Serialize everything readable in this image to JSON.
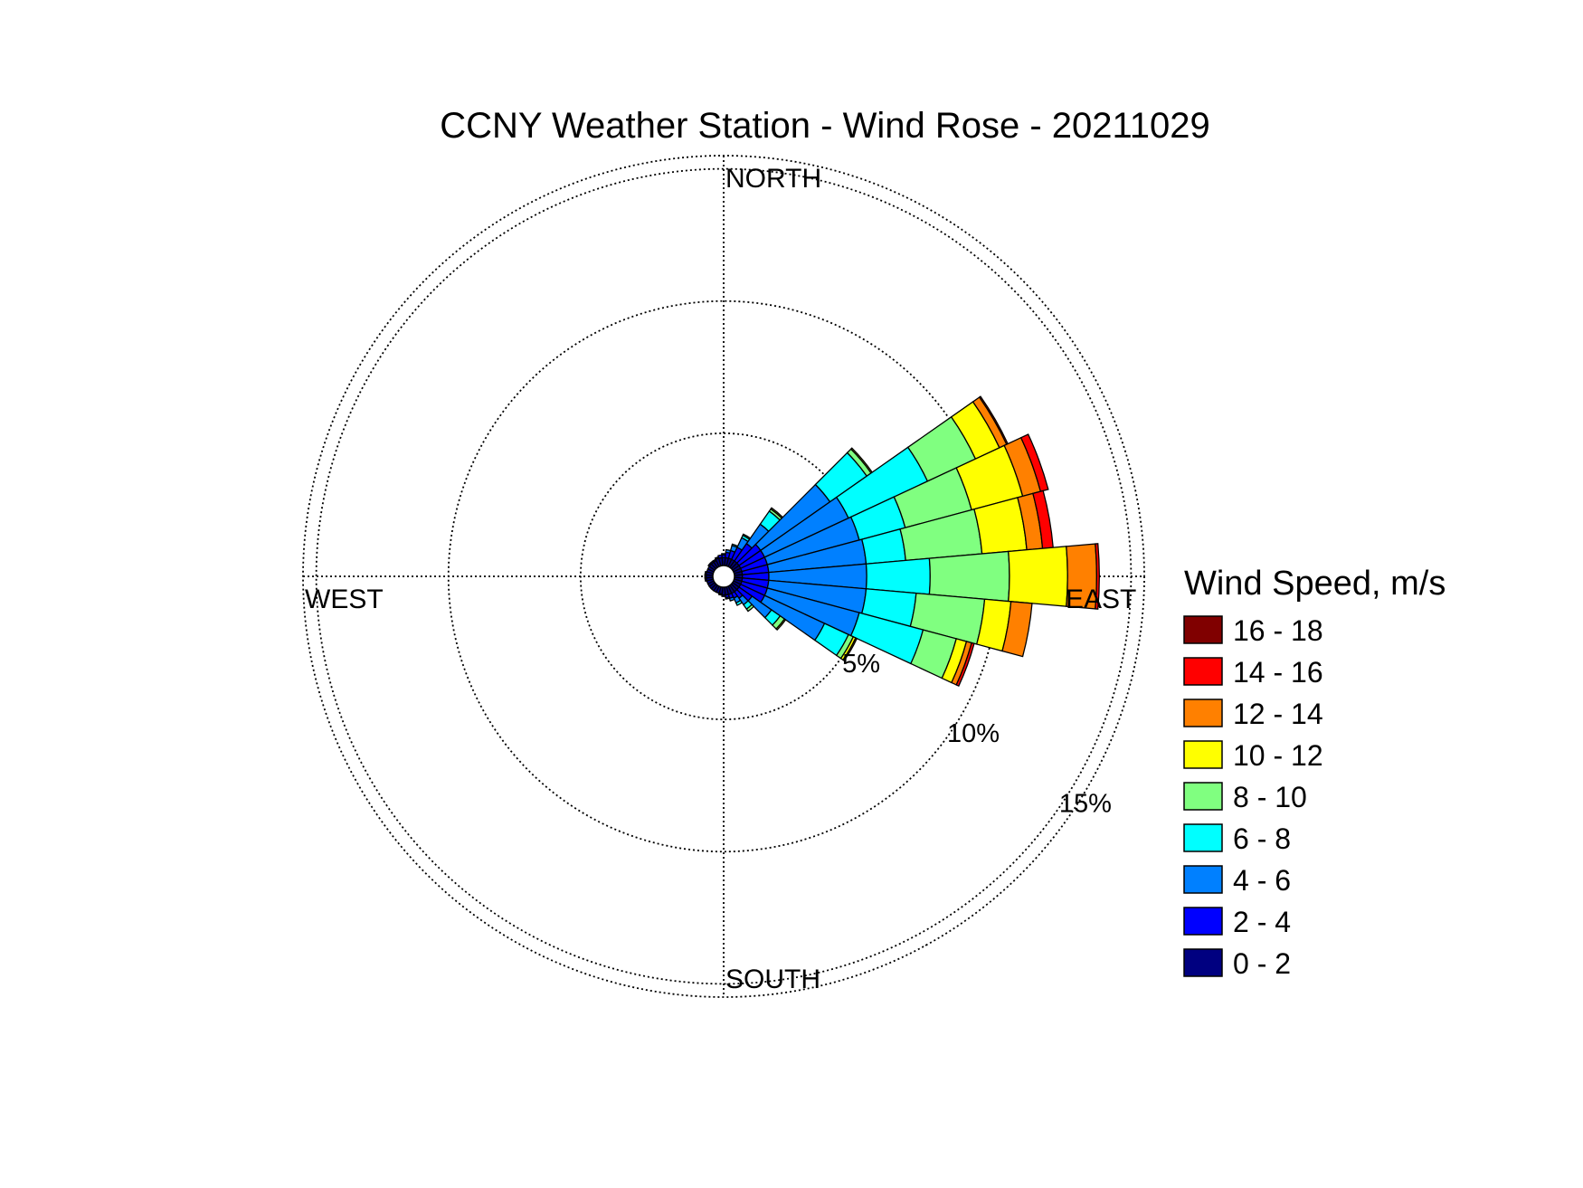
{
  "chart_data": {
    "type": "polar-bar",
    "title": "CCNY Weather Station - Wind Rose - 20211029",
    "directions": {
      "north": "NORTH",
      "west": "WEST",
      "east": "EAST",
      "south": "SOUTH"
    },
    "radial_ticks": [
      {
        "value": 5,
        "label": "5%"
      },
      {
        "value": 10,
        "label": "10%"
      },
      {
        "value": 15,
        "label": "15%"
      }
    ],
    "rmax": 15.5,
    "legend": {
      "title": "Wind Speed, m/s",
      "bins": [
        {
          "label": "16 - 18",
          "color": "#800000"
        },
        {
          "label": "14 - 16",
          "color": "#ff0000"
        },
        {
          "label": "12 - 14",
          "color": "#ff8000"
        },
        {
          "label": "10 - 12",
          "color": "#ffff00"
        },
        {
          "label": "8 - 10",
          "color": "#80ff80"
        },
        {
          "label": "6 - 8",
          "color": "#00ffff"
        },
        {
          "label": "4 - 6",
          "color": "#0080ff"
        },
        {
          "label": "2 - 4",
          "color": "#0000ff"
        },
        {
          "label": "0 - 2",
          "color": "#000080"
        }
      ]
    },
    "speed_bins_low_to_high": [
      "0 - 2",
      "2 - 4",
      "4 - 6",
      "6 - 8",
      "8 - 10",
      "10 - 12",
      "12 - 14",
      "14 - 16",
      "16 - 18"
    ],
    "sector_width_deg": 10,
    "sectors": [
      {
        "direction_deg": 0,
        "values": [
          0.3,
          0.1,
          0.05,
          0,
          0,
          0,
          0,
          0,
          0
        ]
      },
      {
        "direction_deg": 10,
        "values": [
          0.3,
          0.2,
          0.1,
          0,
          0,
          0,
          0,
          0,
          0
        ]
      },
      {
        "direction_deg": 20,
        "values": [
          0.3,
          0.3,
          0.2,
          0.05,
          0,
          0,
          0,
          0,
          0
        ]
      },
      {
        "direction_deg": 30,
        "values": [
          0.3,
          0.5,
          0.4,
          0.1,
          0.05,
          0,
          0,
          0,
          0
        ]
      },
      {
        "direction_deg": 40,
        "values": [
          0.3,
          0.8,
          0.9,
          0.6,
          0.1,
          0.05,
          0,
          0,
          0
        ]
      },
      {
        "direction_deg": 50,
        "values": [
          0.3,
          1.0,
          3.2,
          1.7,
          0.2,
          0.05,
          0,
          0,
          0
        ]
      },
      {
        "direction_deg": 60,
        "values": [
          0.3,
          1.0,
          3.5,
          3.3,
          2.0,
          1.0,
          0.3,
          0.05,
          0
        ]
      },
      {
        "direction_deg": 70,
        "values": [
          0.3,
          1.0,
          3.6,
          1.8,
          2.6,
          2.0,
          0.7,
          0.3,
          0
        ]
      },
      {
        "direction_deg": 80,
        "values": [
          0.3,
          1.0,
          3.7,
          1.5,
          2.9,
          1.7,
          0.6,
          0.4,
          0
        ]
      },
      {
        "direction_deg": 90,
        "values": [
          0.3,
          1.0,
          3.7,
          2.4,
          3.0,
          2.2,
          1.1,
          0.1,
          0
        ]
      },
      {
        "direction_deg": 100,
        "values": [
          0.3,
          1.0,
          3.7,
          1.9,
          2.6,
          1.0,
          0.8,
          0,
          0
        ]
      },
      {
        "direction_deg": 110,
        "values": [
          0.3,
          1.0,
          3.6,
          2.5,
          1.3,
          0.4,
          0.2,
          0.1,
          0
        ]
      },
      {
        "direction_deg": 120,
        "values": [
          0.3,
          1.0,
          2.5,
          1.0,
          0.2,
          0.1,
          0.05,
          0,
          0
        ]
      },
      {
        "direction_deg": 130,
        "values": [
          0.3,
          0.6,
          0.9,
          0.4,
          0.2,
          0.05,
          0,
          0,
          0
        ]
      },
      {
        "direction_deg": 140,
        "values": [
          0.3,
          0.3,
          0.3,
          0.2,
          0.1,
          0,
          0,
          0,
          0
        ]
      },
      {
        "direction_deg": 150,
        "values": [
          0.3,
          0.2,
          0.2,
          0.1,
          0,
          0,
          0,
          0,
          0
        ]
      },
      {
        "direction_deg": 160,
        "values": [
          0.3,
          0.15,
          0.1,
          0,
          0,
          0,
          0,
          0,
          0
        ]
      },
      {
        "direction_deg": 170,
        "values": [
          0.3,
          0.1,
          0.05,
          0,
          0,
          0,
          0,
          0,
          0
        ]
      },
      {
        "direction_deg": 180,
        "values": [
          0.3,
          0.05,
          0,
          0,
          0,
          0,
          0,
          0,
          0
        ]
      },
      {
        "direction_deg": 190,
        "values": [
          0.25,
          0.05,
          0,
          0,
          0,
          0,
          0,
          0,
          0
        ]
      },
      {
        "direction_deg": 200,
        "values": [
          0.25,
          0,
          0,
          0,
          0,
          0,
          0,
          0,
          0
        ]
      },
      {
        "direction_deg": 210,
        "values": [
          0.25,
          0,
          0,
          0,
          0,
          0,
          0,
          0,
          0
        ]
      },
      {
        "direction_deg": 220,
        "values": [
          0.25,
          0,
          0,
          0,
          0,
          0,
          0,
          0,
          0
        ]
      },
      {
        "direction_deg": 230,
        "values": [
          0.25,
          0,
          0,
          0,
          0,
          0,
          0,
          0,
          0
        ]
      },
      {
        "direction_deg": 240,
        "values": [
          0.25,
          0,
          0,
          0,
          0,
          0,
          0,
          0,
          0
        ]
      },
      {
        "direction_deg": 250,
        "values": [
          0.25,
          0,
          0,
          0,
          0,
          0,
          0,
          0,
          0
        ]
      },
      {
        "direction_deg": 260,
        "values": [
          0.25,
          0.05,
          0,
          0,
          0,
          0,
          0,
          0,
          0
        ]
      },
      {
        "direction_deg": 270,
        "values": [
          0.25,
          0.05,
          0,
          0,
          0,
          0,
          0,
          0,
          0
        ]
      },
      {
        "direction_deg": 280,
        "values": [
          0.25,
          0.05,
          0,
          0,
          0,
          0,
          0,
          0,
          0
        ]
      },
      {
        "direction_deg": 290,
        "values": [
          0.25,
          0,
          0,
          0,
          0,
          0,
          0,
          0,
          0
        ]
      },
      {
        "direction_deg": 300,
        "values": [
          0.25,
          0,
          0,
          0,
          0,
          0,
          0,
          0,
          0
        ]
      },
      {
        "direction_deg": 310,
        "values": [
          0.25,
          0.05,
          0,
          0,
          0,
          0,
          0,
          0,
          0
        ]
      },
      {
        "direction_deg": 320,
        "values": [
          0.25,
          0.05,
          0,
          0,
          0,
          0,
          0,
          0,
          0
        ]
      },
      {
        "direction_deg": 330,
        "values": [
          0.25,
          0.05,
          0,
          0,
          0,
          0,
          0,
          0,
          0
        ]
      },
      {
        "direction_deg": 340,
        "values": [
          0.3,
          0.05,
          0,
          0,
          0,
          0,
          0,
          0,
          0
        ]
      },
      {
        "direction_deg": 350,
        "values": [
          0.3,
          0.1,
          0,
          0,
          0,
          0,
          0,
          0,
          0
        ]
      }
    ]
  }
}
